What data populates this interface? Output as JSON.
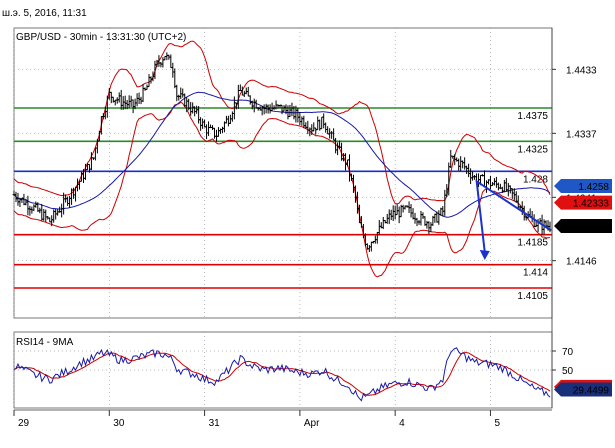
{
  "header": {
    "datetime": "ш.э. 5, 2016, 11:31"
  },
  "colors": {
    "price": "#000000",
    "bollinger": "#cc0000",
    "ma": "#1a1aaa",
    "resistance": "#2a8a2a",
    "pivot": "#1a2ecc",
    "support": "#dd0000",
    "arrow": "#1a33cc",
    "rsi": "#1a1aaa",
    "rsi_ma": "#cc0000",
    "grid": "#9aa0a6",
    "badge_blue": "#1f57c5",
    "badge_red": "#e01010",
    "badge_black": "#000000",
    "badge_navy": "#1a2f7a"
  },
  "chart_data": [
    {
      "type": "line",
      "title": "GBP/USD - 30min - 13:31:30 (UTC+2)",
      "ylim": [
        1.406,
        1.4495
      ],
      "y_ticks": [
        1.4433,
        1.4337,
        1.4241,
        1.4146
      ],
      "y_tick_labels": [
        "1.4433",
        "1.4337",
        "1.4241",
        "1.4146"
      ],
      "grid": true,
      "x_day_labels": [
        "29",
        "30",
        "31",
        "Apr",
        "4",
        "5"
      ],
      "x_day_positions": [
        0,
        48,
        96,
        144,
        192,
        240
      ],
      "num_bars": 272,
      "price_key": [
        [
          0,
          1.4245
        ],
        [
          10,
          1.4225
        ],
        [
          18,
          1.4205
        ],
        [
          26,
          1.4235
        ],
        [
          34,
          1.427
        ],
        [
          40,
          1.43
        ],
        [
          44,
          1.436
        ],
        [
          48,
          1.4395
        ],
        [
          54,
          1.4385
        ],
        [
          60,
          1.4378
        ],
        [
          66,
          1.44
        ],
        [
          72,
          1.444
        ],
        [
          76,
          1.4455
        ],
        [
          80,
          1.4435
        ],
        [
          82,
          1.4395
        ],
        [
          86,
          1.4385
        ],
        [
          92,
          1.4365
        ],
        [
          96,
          1.4345
        ],
        [
          102,
          1.4335
        ],
        [
          108,
          1.436
        ],
        [
          114,
          1.44
        ],
        [
          120,
          1.4385
        ],
        [
          126,
          1.4375
        ],
        [
          134,
          1.4375
        ],
        [
          142,
          1.4365
        ],
        [
          150,
          1.4345
        ],
        [
          156,
          1.4355
        ],
        [
          162,
          1.4318
        ],
        [
          168,
          1.429
        ],
        [
          172,
          1.424
        ],
        [
          174,
          1.42
        ],
        [
          178,
          1.4168
        ],
        [
          184,
          1.4192
        ],
        [
          190,
          1.4215
        ],
        [
          198,
          1.4222
        ],
        [
          204,
          1.421
        ],
        [
          210,
          1.4202
        ],
        [
          216,
          1.422
        ],
        [
          220,
          1.43
        ],
        [
          226,
          1.429
        ],
        [
          232,
          1.427
        ],
        [
          240,
          1.4262
        ],
        [
          246,
          1.4258
        ],
        [
          252,
          1.4242
        ],
        [
          258,
          1.4215
        ],
        [
          264,
          1.42
        ],
        [
          270,
          1.4198
        ]
      ],
      "series": [
        {
          "name": "GBP/USD",
          "values_note": "price_key"
        }
      ],
      "levels": [
        {
          "value": 1.4375,
          "label": "1.4375",
          "kind": "resistance"
        },
        {
          "value": 1.4325,
          "label": "1.4325",
          "kind": "resistance"
        },
        {
          "value": 1.428,
          "label": "1.428",
          "kind": "pivot"
        },
        {
          "value": 1.4185,
          "label": "1.4185",
          "kind": "support"
        },
        {
          "value": 1.414,
          "label": "1.414",
          "kind": "support"
        },
        {
          "value": 1.4105,
          "label": "1.4105",
          "kind": "support"
        }
      ],
      "badges": [
        {
          "value": 1.4258,
          "label": "1.4258",
          "color": "badge_blue"
        },
        {
          "value": 1.4233,
          "label": "1.42333",
          "color": "badge_red"
        },
        {
          "value": 1.4198,
          "label": "1.4198",
          "color": "badge_black"
        }
      ],
      "arrow": {
        "from": [
          0.86,
          1.4248
        ],
        "via": [
          0.84,
          1.4265
        ],
        "to": [
          0.875,
          1.4147
        ]
      }
    },
    {
      "type": "line",
      "title": "RSI14 - 9MA",
      "ylim": [
        10,
        90
      ],
      "y_ticks": [
        70,
        50
      ],
      "y_tick_labels": [
        "70",
        "50"
      ],
      "rsi_key": [
        [
          0,
          55
        ],
        [
          10,
          45
        ],
        [
          18,
          40
        ],
        [
          26,
          48
        ],
        [
          34,
          58
        ],
        [
          40,
          62
        ],
        [
          44,
          68
        ],
        [
          48,
          66
        ],
        [
          54,
          60
        ],
        [
          60,
          62
        ],
        [
          66,
          65
        ],
        [
          72,
          68
        ],
        [
          76,
          66
        ],
        [
          80,
          60
        ],
        [
          82,
          52
        ],
        [
          86,
          48
        ],
        [
          92,
          45
        ],
        [
          96,
          40
        ],
        [
          102,
          38
        ],
        [
          108,
          50
        ],
        [
          114,
          62
        ],
        [
          120,
          54
        ],
        [
          126,
          50
        ],
        [
          134,
          52
        ],
        [
          142,
          48
        ],
        [
          150,
          46
        ],
        [
          156,
          50
        ],
        [
          162,
          40
        ],
        [
          168,
          35
        ],
        [
          172,
          25
        ],
        [
          174,
          20
        ],
        [
          178,
          22
        ],
        [
          184,
          30
        ],
        [
          190,
          35
        ],
        [
          198,
          38
        ],
        [
          204,
          34
        ],
        [
          210,
          30
        ],
        [
          216,
          40
        ],
        [
          220,
          72
        ],
        [
          226,
          66
        ],
        [
          232,
          58
        ],
        [
          240,
          56
        ],
        [
          246,
          52
        ],
        [
          252,
          44
        ],
        [
          258,
          35
        ],
        [
          264,
          28
        ],
        [
          270,
          25
        ]
      ],
      "series": [
        {
          "name": "RSI14",
          "values_note": "rsi_key"
        },
        {
          "name": "9MA",
          "values_note": "rsi_key smoothed"
        }
      ],
      "badges": [
        {
          "value": 32.1892,
          "label": "32.1892",
          "color": "badge_red"
        },
        {
          "value": 29.4499,
          "label": "29.4499",
          "color": "badge_navy"
        }
      ]
    }
  ]
}
